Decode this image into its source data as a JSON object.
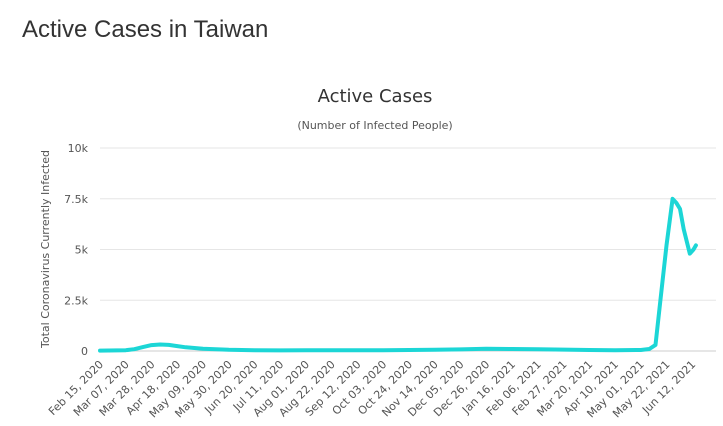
{
  "page": {
    "heading": "Active Cases in Taiwan"
  },
  "chart_data": {
    "type": "line",
    "title": "Active Cases",
    "subtitle": "(Number of Infected People)",
    "xlabel": "",
    "ylabel": "Total Coronavirus Currently Infected",
    "ylim": [
      0,
      10000
    ],
    "y_ticks": [
      0,
      2500,
      5000,
      7500,
      10000
    ],
    "y_tick_labels": [
      "0",
      "2.5k",
      "5k",
      "7.5k",
      "10k"
    ],
    "x_tick_labels": [
      "Feb 15, 2020",
      "Mar 07, 2020",
      "Mar 28, 2020",
      "Apr 18, 2020",
      "May 09, 2020",
      "May 30, 2020",
      "Jun 20, 2020",
      "Jul 11, 2020",
      "Aug 01, 2020",
      "Aug 22, 2020",
      "Sep 12, 2020",
      "Oct 03, 2020",
      "Oct 24, 2020",
      "Nov 14, 2020",
      "Dec 05, 2020",
      "Dec 26, 2020",
      "Jan 16, 2021",
      "Feb 06, 2021",
      "Feb 27, 2021",
      "Mar 20, 2021",
      "Apr 10, 2021",
      "May 01, 2021",
      "May 22, 2021",
      "Jun 12, 2021"
    ],
    "grid": true,
    "legend": "none",
    "line_color": "#1cd6d6",
    "series": [
      {
        "x": [
          "2020-02-15",
          "2020-03-07",
          "2020-03-14",
          "2020-03-21",
          "2020-03-28",
          "2020-04-04",
          "2020-04-11",
          "2020-04-18",
          "2020-04-25",
          "2020-05-09",
          "2020-05-30",
          "2020-06-20",
          "2020-07-11",
          "2020-08-01",
          "2020-08-22",
          "2020-09-12",
          "2020-10-03",
          "2020-10-24",
          "2020-11-14",
          "2020-12-05",
          "2020-12-26",
          "2021-01-16",
          "2021-02-06",
          "2021-02-27",
          "2021-03-20",
          "2021-04-10",
          "2021-05-01",
          "2021-05-08",
          "2021-05-13",
          "2021-05-17",
          "2021-05-22",
          "2021-05-27",
          "2021-05-30",
          "2021-06-02",
          "2021-06-05",
          "2021-06-10",
          "2021-06-13",
          "2021-06-15"
        ],
        "values": [
          20,
          40,
          90,
          190,
          290,
          320,
          300,
          240,
          180,
          110,
          60,
          40,
          30,
          40,
          40,
          40,
          40,
          50,
          60,
          80,
          110,
          100,
          90,
          70,
          50,
          40,
          50,
          100,
          300,
          2500,
          5200,
          7500,
          7300,
          7000,
          6000,
          4800,
          5000,
          5200
        ]
      }
    ]
  }
}
